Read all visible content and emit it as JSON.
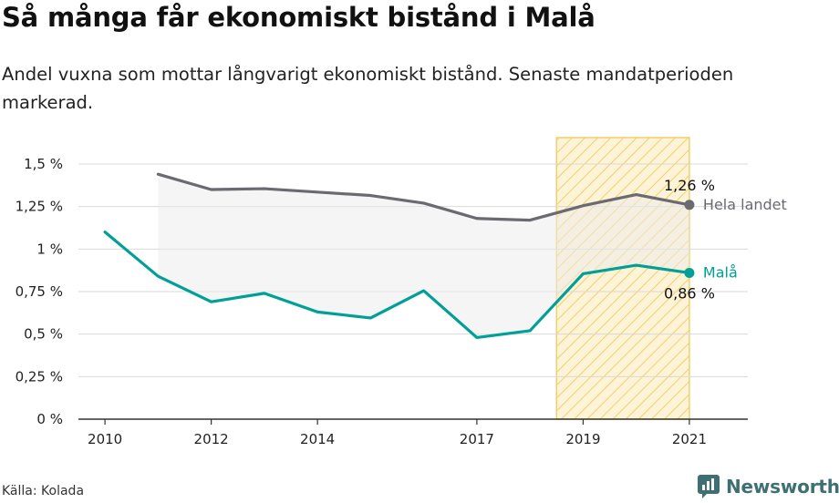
{
  "header": {
    "title": "Så många får ekonomiskt bistånd i Malå",
    "subtitle": "Andel vuxna som mottar långvarigt ekonomiskt bistånd. Senaste mandatperioden markerad."
  },
  "footer": {
    "source": "Källa: Kolada",
    "brand": "Newsworthy"
  },
  "colors": {
    "country": "#6b6a70",
    "mala": "#00a096",
    "highlight_stroke": "#f2cf6d",
    "highlight_fill": "#fdf3d6",
    "gap_fill": "#ebebeb",
    "grid": "#d9d9d9",
    "axis": "#333333",
    "brand": "#3d6f73"
  },
  "chart_data": {
    "type": "line",
    "title": "Så många får ekonomiskt bistånd i Malå",
    "x_range": [
      2009.5,
      2022.1
    ],
    "ylim": [
      0,
      1.5
    ],
    "y_ticks": [
      0,
      0.25,
      0.5,
      0.75,
      1,
      1.25,
      1.5
    ],
    "y_tick_labels": [
      "0 %",
      "0,25 %",
      "0,5 %",
      "0,75 %",
      "1 %",
      "1,25 %",
      "1,5 %"
    ],
    "x_ticks": [
      2010,
      2012,
      2014,
      2017,
      2019,
      2021
    ],
    "x_tick_labels": [
      "2010",
      "2012",
      "2014",
      "2017",
      "2019",
      "2021"
    ],
    "grid": "horizontal",
    "highlight_period": [
      2018.5,
      2021
    ],
    "series": [
      {
        "name": "Hela landet",
        "color": "#6b6a70",
        "x": [
          2011,
          2012,
          2013,
          2014,
          2015,
          2016,
          2017,
          2018,
          2019,
          2020,
          2021
        ],
        "values": [
          1.44,
          1.35,
          1.355,
          1.335,
          1.315,
          1.27,
          1.18,
          1.17,
          1.255,
          1.32,
          1.26
        ],
        "end_label": "1,26 %"
      },
      {
        "name": "Malå",
        "color": "#00a096",
        "x": [
          2010,
          2011,
          2012,
          2013,
          2014,
          2015,
          2016,
          2017,
          2018,
          2019,
          2020,
          2021
        ],
        "values": [
          1.1,
          0.84,
          0.69,
          0.74,
          0.63,
          0.595,
          0.755,
          0.48,
          0.52,
          0.855,
          0.905,
          0.86
        ],
        "end_label": "0,86 %"
      }
    ]
  }
}
